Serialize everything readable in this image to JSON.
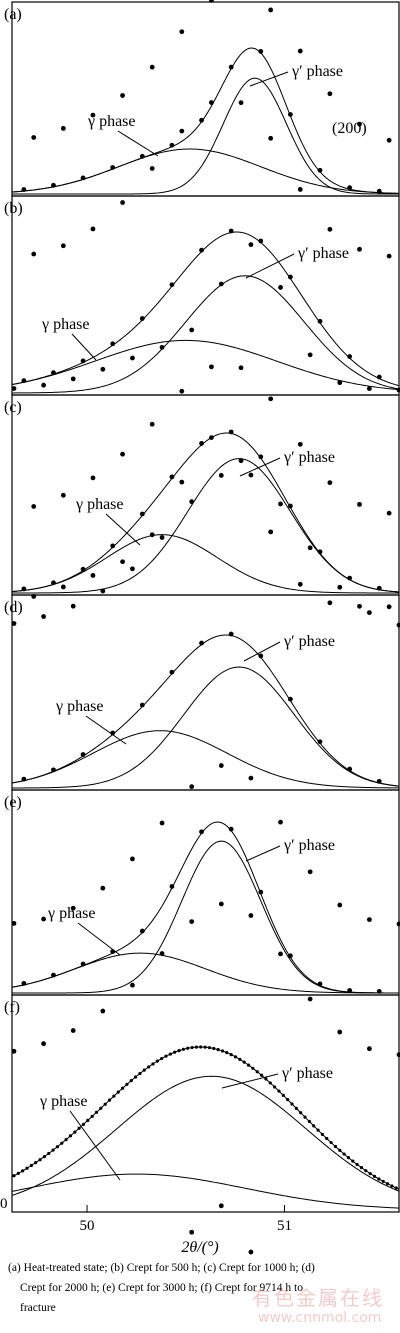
{
  "chart_data": {
    "type": "line",
    "xlabel": "2θ/(°)",
    "xlim": [
      49.62,
      51.58
    ],
    "x_ticks": [
      "50",
      "51"
    ],
    "y_tick_label": "0",
    "panels": [
      {
        "label": "(a)",
        "annotation": "(200)",
        "y_max": 1.0,
        "gamma": {
          "center": 50.52,
          "sigma": 0.36,
          "amp": 0.33
        },
        "gprime": {
          "center": 50.85,
          "sigma": 0.16,
          "amp": 0.85
        },
        "gamma_label": "γ phase",
        "gprime_label": "γ′ phase"
      },
      {
        "label": "(b)",
        "y_max": 1.0,
        "gamma": {
          "center": 50.5,
          "sigma": 0.46,
          "amp": 0.35
        },
        "gprime": {
          "center": 50.8,
          "sigma": 0.3,
          "amp": 0.78
        },
        "gamma_label": "γ phase",
        "gprime_label": "γ′ phase"
      },
      {
        "label": "(c)",
        "y_max": 1.0,
        "gamma": {
          "center": 50.38,
          "sigma": 0.28,
          "amp": 0.33
        },
        "gprime": {
          "center": 50.77,
          "sigma": 0.26,
          "amp": 0.76
        },
        "gamma_label": "γ phase",
        "gprime_label": "γ′ phase"
      },
      {
        "label": "(d)",
        "y_max": 1.0,
        "gamma": {
          "center": 50.37,
          "sigma": 0.34,
          "amp": 0.36
        },
        "gprime": {
          "center": 50.77,
          "sigma": 0.28,
          "amp": 0.76
        },
        "gamma_label": "γ phase",
        "gprime_label": "γ′ phase"
      },
      {
        "label": "(e)",
        "y_max": 1.0,
        "gamma": {
          "center": 50.27,
          "sigma": 0.33,
          "amp": 0.21
        },
        "gprime": {
          "center": 50.68,
          "sigma": 0.2,
          "amp": 0.8
        },
        "gamma_label": "γ phase",
        "gprime_label": "γ′ phase"
      },
      {
        "label": "(f)",
        "y_max": 1.0,
        "gamma": {
          "center": 50.25,
          "sigma": 0.55,
          "amp": 0.18
        },
        "gprime": {
          "center": 50.63,
          "sigma": 0.48,
          "amp": 0.67
        },
        "gamma_label": "γ phase",
        "gprime_label": "γ′ phase"
      }
    ]
  },
  "caption": {
    "line1": "(a) Heat-treated state; (b) Crept for 500 h; (c) Crept for 1000 h; (d)",
    "line2": "Crept for 2000 h; (e) Crept for 3000 h; (f) Crept for 9714 h to",
    "line3": "fracture"
  },
  "watermark": {
    "text": "有色金属在线",
    "url": "www.cnnmol.com"
  }
}
